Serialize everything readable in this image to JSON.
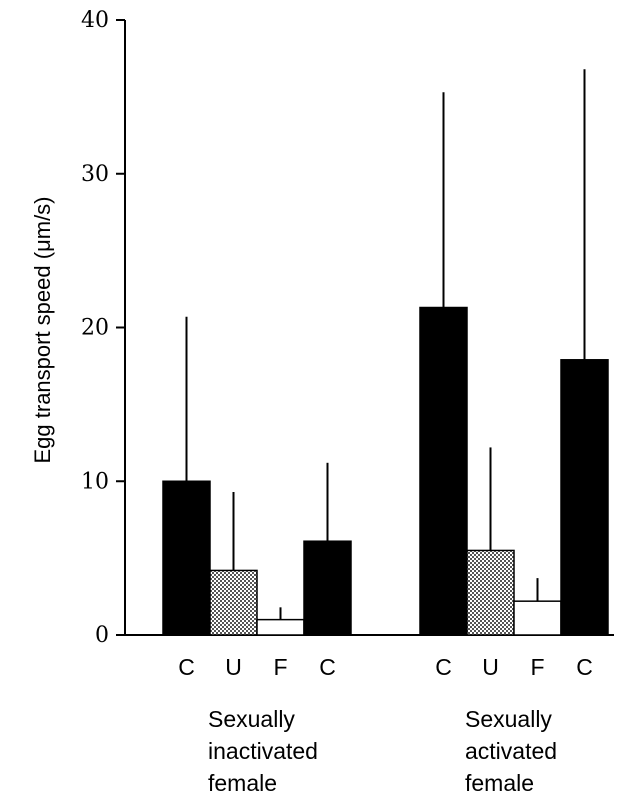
{
  "chart_data": {
    "type": "bar",
    "ylabel": "Egg transport speed (μm/s)",
    "ylim": [
      0,
      40
    ],
    "yticks": [
      0,
      10,
      20,
      30,
      40
    ],
    "grid": false,
    "groups": [
      {
        "label_lines": [
          "Sexually",
          "inactivated",
          "female"
        ],
        "bars": [
          {
            "category": "C",
            "value": 10.0,
            "error": 10.7,
            "fill": "solid"
          },
          {
            "category": "U",
            "value": 4.2,
            "error": 5.1,
            "fill": "hatched"
          },
          {
            "category": "F",
            "value": 1.0,
            "error": 0.8,
            "fill": "open"
          },
          {
            "category": "C",
            "value": 6.1,
            "error": 5.1,
            "fill": "solid"
          }
        ]
      },
      {
        "label_lines": [
          "Sexually",
          "activated",
          "female"
        ],
        "bars": [
          {
            "category": "C",
            "value": 21.3,
            "error": 14.0,
            "fill": "solid"
          },
          {
            "category": "U",
            "value": 5.5,
            "error": 6.7,
            "fill": "hatched"
          },
          {
            "category": "F",
            "value": 2.2,
            "error": 1.5,
            "fill": "open"
          },
          {
            "category": "C",
            "value": 17.9,
            "error": 18.9,
            "fill": "solid"
          }
        ]
      }
    ],
    "colors": {
      "solid": "#000000",
      "hatched": "#7a7a7a",
      "open": "#ffffff"
    }
  }
}
